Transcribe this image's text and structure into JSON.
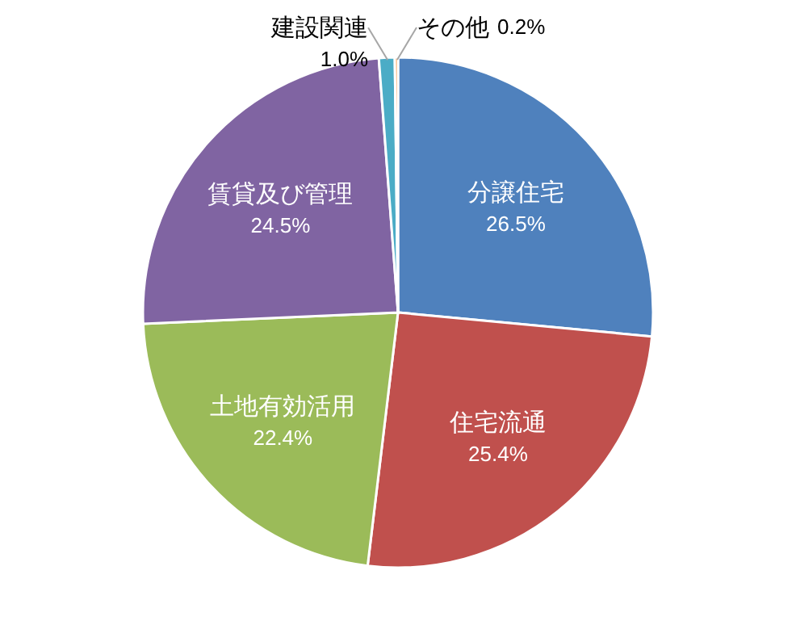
{
  "chart_data": {
    "type": "pie",
    "categories": [
      "分譲住宅",
      "住宅流通",
      "土地有効活用",
      "賃貸及び管理",
      "建設関連",
      "その他"
    ],
    "values": [
      26.5,
      25.4,
      22.4,
      24.5,
      1.0,
      0.2
    ],
    "value_labels": [
      "26.5%",
      "25.4%",
      "22.4%",
      "24.5%",
      "1.0%",
      "0.2%"
    ],
    "colors": [
      "#4f81bd",
      "#c0504d",
      "#9bbb59",
      "#8064a2",
      "#4bacc6",
      "#f79646"
    ]
  }
}
